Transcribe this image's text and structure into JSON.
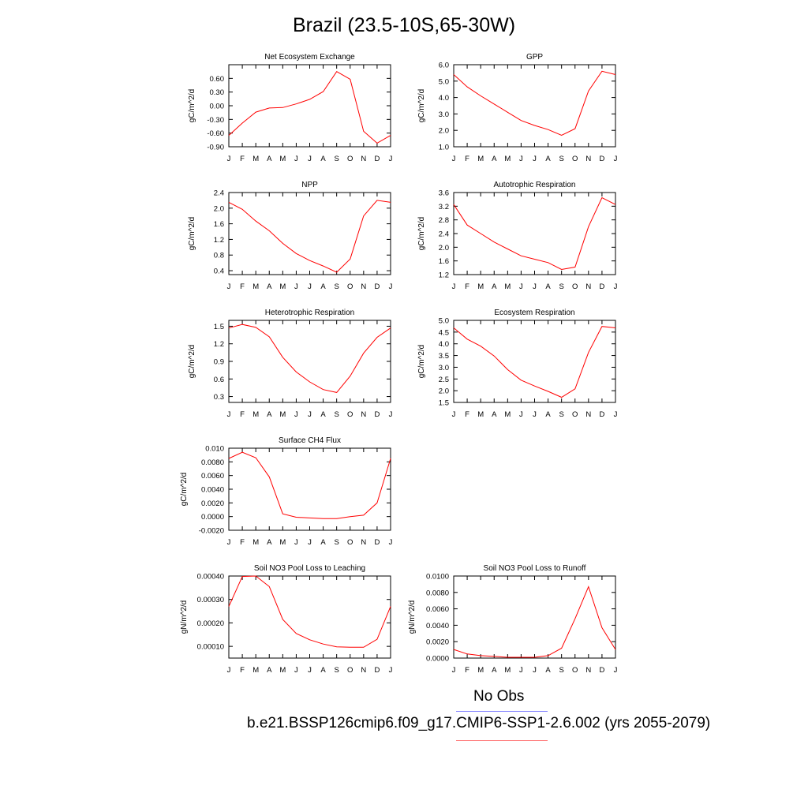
{
  "title": "Brazil (23.5-10S,65-30W)",
  "legend": {
    "obs_label": "No Obs",
    "case_label": "b.e21.BSSP126cmip6.f09_g17.CMIP6-SSP1-2.6.002 (yrs 2055-2079)",
    "obs_color": "#8080ff",
    "case_color": "#ff8080"
  },
  "line_color": "#ff0000",
  "chart_data": [
    {
      "type": "line",
      "title": "Net Ecosystem Exchange",
      "ylabel": "gC/m^2/d",
      "ylim": [
        -0.9,
        0.9
      ],
      "yticks": [
        -0.9,
        -0.6,
        -0.3,
        0.0,
        0.3,
        0.6
      ],
      "ytick_labels": [
        "-0.90",
        "-0.60",
        "-0.30",
        "0.00",
        "0.30",
        "0.60"
      ],
      "x": [
        "J",
        "F",
        "M",
        "A",
        "M",
        "J",
        "J",
        "A",
        "S",
        "O",
        "N",
        "D",
        "J"
      ],
      "series": [
        {
          "values": [
            -0.65,
            -0.38,
            -0.14,
            -0.05,
            -0.04,
            0.04,
            0.14,
            0.31,
            0.75,
            0.58,
            -0.56,
            -0.82,
            -0.65
          ]
        }
      ]
    },
    {
      "type": "line",
      "title": "GPP",
      "ylabel": "gC/m^2/d",
      "ylim": [
        1.0,
        6.0
      ],
      "yticks": [
        1.0,
        2.0,
        3.0,
        4.0,
        5.0,
        6.0
      ],
      "ytick_labels": [
        "1.0",
        "2.0",
        "3.0",
        "4.0",
        "5.0",
        "6.0"
      ],
      "x": [
        "J",
        "F",
        "M",
        "A",
        "M",
        "J",
        "J",
        "A",
        "S",
        "O",
        "N",
        "D",
        "J"
      ],
      "series": [
        {
          "values": [
            5.4,
            4.65,
            4.1,
            3.6,
            3.1,
            2.6,
            2.3,
            2.05,
            1.7,
            2.1,
            4.4,
            5.6,
            5.4
          ]
        }
      ]
    },
    {
      "type": "line",
      "title": "NPP",
      "ylabel": "gC/m^2/d",
      "ylim": [
        0.3,
        2.4
      ],
      "yticks": [
        0.4,
        0.8,
        1.2,
        1.6,
        2.0,
        2.4
      ],
      "ytick_labels": [
        "0.4",
        "0.8",
        "1.2",
        "1.6",
        "2.0",
        "2.4"
      ],
      "x": [
        "J",
        "F",
        "M",
        "A",
        "M",
        "J",
        "J",
        "A",
        "S",
        "O",
        "N",
        "D",
        "J"
      ],
      "series": [
        {
          "values": [
            2.15,
            1.97,
            1.67,
            1.42,
            1.1,
            0.84,
            0.66,
            0.52,
            0.36,
            0.7,
            1.8,
            2.2,
            2.15
          ]
        }
      ]
    },
    {
      "type": "line",
      "title": "Autotrophic Respiration",
      "ylabel": "gC/m^2/d",
      "ylim": [
        1.2,
        3.6
      ],
      "yticks": [
        1.2,
        1.6,
        2.0,
        2.4,
        2.8,
        3.2,
        3.6
      ],
      "ytick_labels": [
        "1.2",
        "1.6",
        "2.0",
        "2.4",
        "2.8",
        "3.2",
        "3.6"
      ],
      "x": [
        "J",
        "F",
        "M",
        "A",
        "M",
        "J",
        "J",
        "A",
        "S",
        "O",
        "N",
        "D",
        "J"
      ],
      "series": [
        {
          "values": [
            3.25,
            2.65,
            2.4,
            2.15,
            1.95,
            1.75,
            1.65,
            1.55,
            1.35,
            1.42,
            2.6,
            3.45,
            3.25
          ]
        }
      ]
    },
    {
      "type": "line",
      "title": "Heterotrophic Respiration",
      "ylabel": "gC/m^2/d",
      "ylim": [
        0.2,
        1.6
      ],
      "yticks": [
        0.3,
        0.6,
        0.9,
        1.2,
        1.5
      ],
      "ytick_labels": [
        "0.3",
        "0.6",
        "0.9",
        "1.2",
        "1.5"
      ],
      "x": [
        "J",
        "F",
        "M",
        "A",
        "M",
        "J",
        "J",
        "A",
        "S",
        "O",
        "N",
        "D",
        "J"
      ],
      "series": [
        {
          "values": [
            1.47,
            1.53,
            1.48,
            1.32,
            0.97,
            0.72,
            0.55,
            0.42,
            0.37,
            0.65,
            1.04,
            1.31,
            1.47
          ]
        }
      ]
    },
    {
      "type": "line",
      "title": "Ecosystem Respiration",
      "ylabel": "gC/m^2/d",
      "ylim": [
        1.5,
        5.0
      ],
      "yticks": [
        1.5,
        2.0,
        2.5,
        3.0,
        3.5,
        4.0,
        4.5,
        5.0
      ],
      "ytick_labels": [
        "1.5",
        "2.0",
        "2.5",
        "3.0",
        "3.5",
        "4.0",
        "4.5",
        "5.0"
      ],
      "x": [
        "J",
        "F",
        "M",
        "A",
        "M",
        "J",
        "J",
        "A",
        "S",
        "O",
        "N",
        "D",
        "J"
      ],
      "series": [
        {
          "values": [
            4.68,
            4.2,
            3.9,
            3.48,
            2.9,
            2.45,
            2.2,
            1.97,
            1.72,
            2.08,
            3.63,
            4.74,
            4.68
          ]
        }
      ]
    },
    {
      "type": "line",
      "title": "Surface CH4 Flux",
      "ylabel": "gC/m^2/d",
      "ylim": [
        -0.002,
        0.01
      ],
      "yticks": [
        -0.002,
        0.0,
        0.002,
        0.004,
        0.006,
        0.008,
        0.01
      ],
      "ytick_labels": [
        "-0.0020",
        "0.0000",
        "0.0020",
        "0.0040",
        "0.0060",
        "0.0080",
        "0.010"
      ],
      "x": [
        "J",
        "F",
        "M",
        "A",
        "M",
        "J",
        "J",
        "A",
        "S",
        "O",
        "N",
        "D",
        "J"
      ],
      "series": [
        {
          "values": [
            0.0085,
            0.0094,
            0.0086,
            0.0058,
            0.0004,
            -0.0001,
            -0.0002,
            -0.0003,
            -0.0003,
            0.0,
            0.0002,
            0.002,
            0.0085
          ]
        }
      ]
    },
    {
      "type": "line",
      "title": "Soil NO3 Pool Loss to Leaching",
      "ylabel": "gN/m^2/d",
      "ylim": [
        5e-05,
        0.0004
      ],
      "yticks": [
        0.0001,
        0.0002,
        0.0003,
        0.0004
      ],
      "ytick_labels": [
        "0.00010",
        "0.00020",
        "0.00030",
        "0.00040"
      ],
      "x": [
        "J",
        "F",
        "M",
        "A",
        "M",
        "J",
        "J",
        "A",
        "S",
        "O",
        "N",
        "D",
        "J"
      ],
      "series": [
        {
          "values": [
            0.00027,
            0.000398,
            0.0004,
            0.000355,
            0.000215,
            0.000155,
            0.000128,
            0.00011,
            9.8e-05,
            9.6e-05,
            9.6e-05,
            0.00013,
            0.00027
          ]
        }
      ]
    },
    {
      "type": "line",
      "title": "Soil NO3 Pool Loss to Runoff",
      "ylabel": "gN/m^2/d",
      "ylim": [
        0.0,
        0.01
      ],
      "yticks": [
        0.0,
        0.002,
        0.004,
        0.006,
        0.008,
        0.01
      ],
      "ytick_labels": [
        "0.0000",
        "0.0020",
        "0.0040",
        "0.0060",
        "0.0080",
        "0.0100"
      ],
      "x": [
        "J",
        "F",
        "M",
        "A",
        "M",
        "J",
        "J",
        "A",
        "S",
        "O",
        "N",
        "D",
        "J"
      ],
      "series": [
        {
          "values": [
            0.00105,
            0.0005,
            0.0003,
            0.0002,
            0.0001,
            0.0001,
            0.0001,
            0.0003,
            0.0012,
            0.0048,
            0.0087,
            0.0037,
            0.00105
          ]
        }
      ]
    }
  ]
}
